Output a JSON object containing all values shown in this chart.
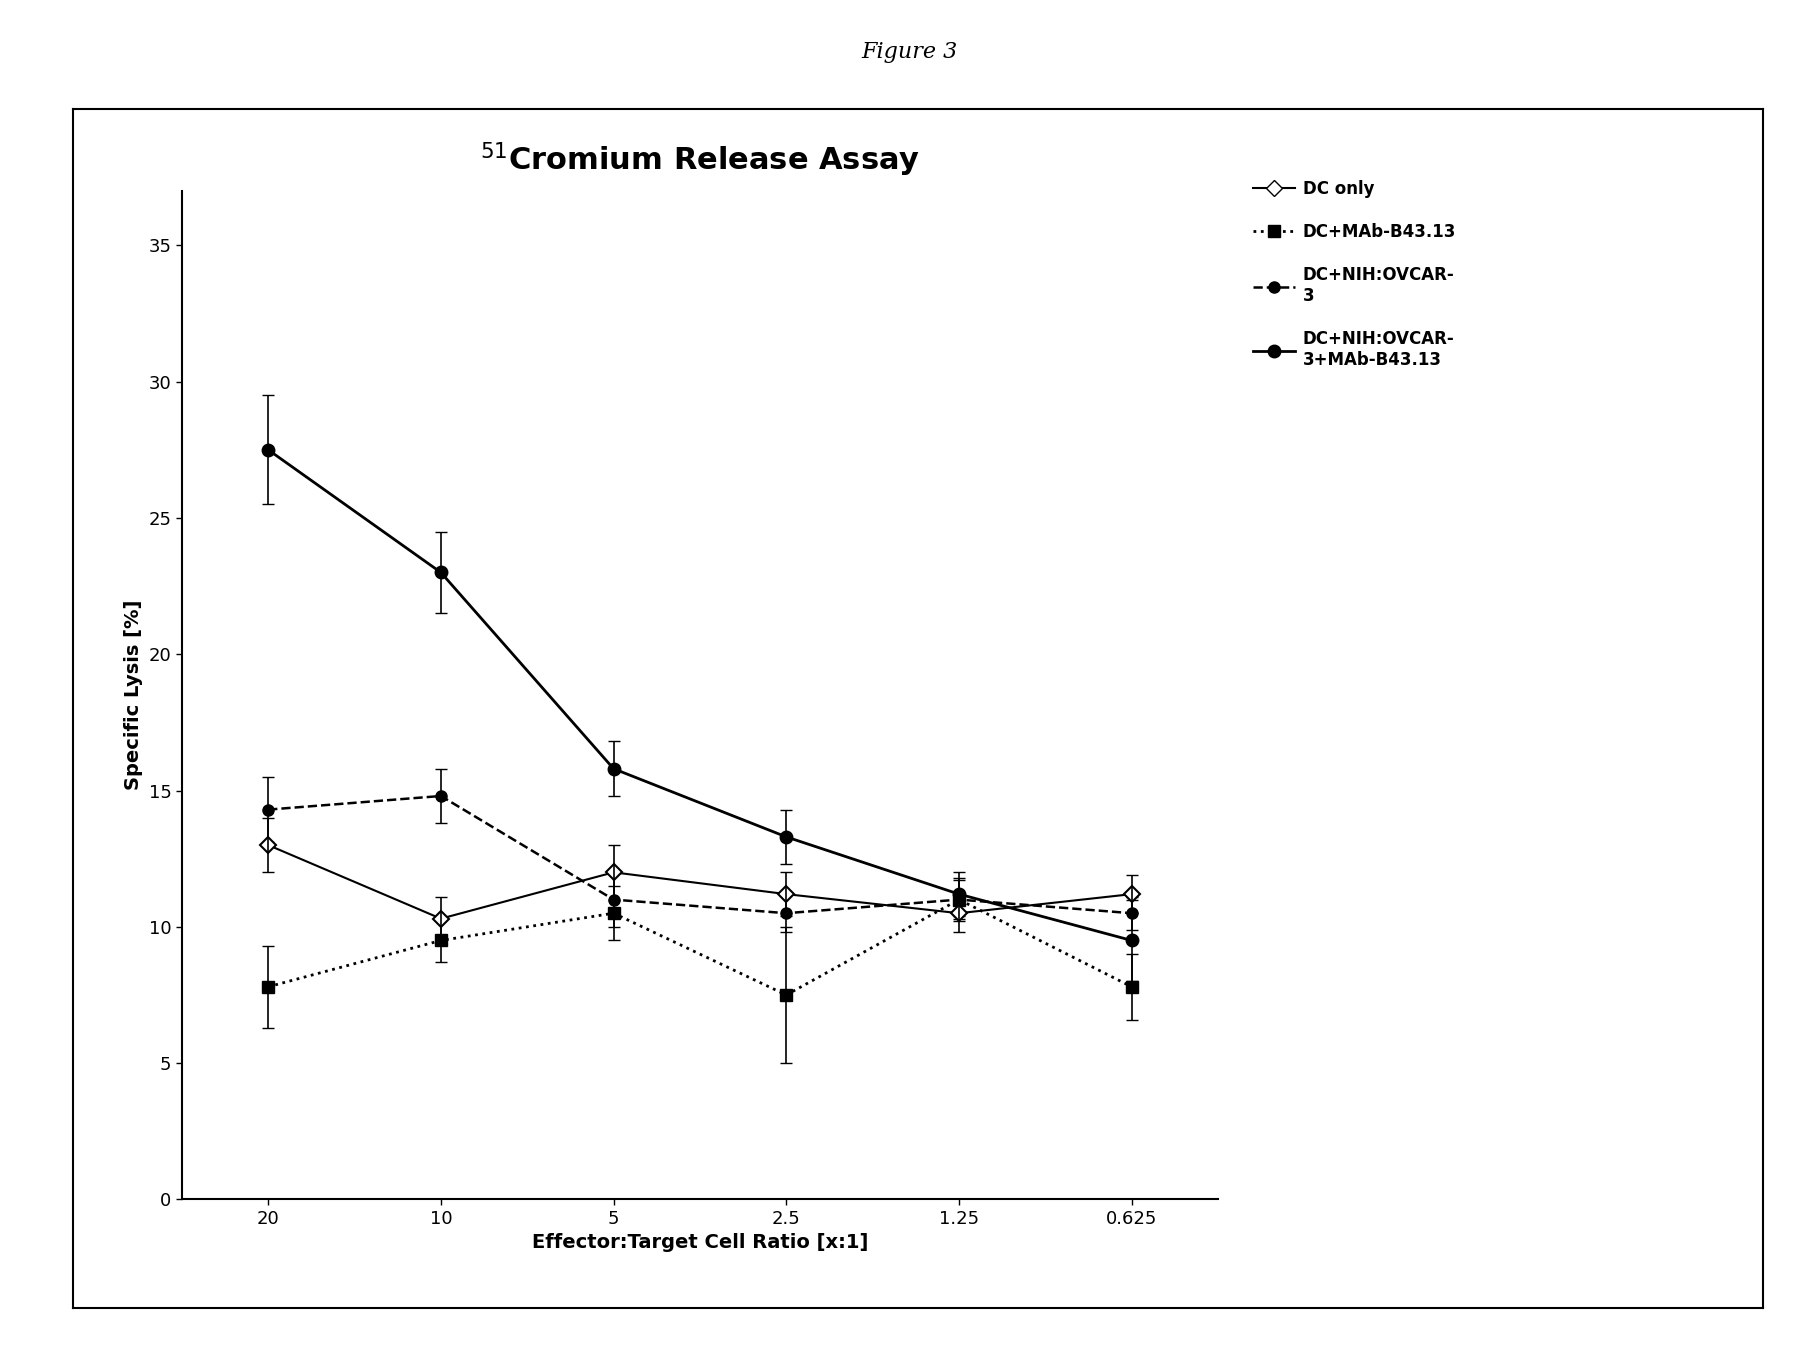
{
  "title": "$^{51}$Cromium Release Assay",
  "figure_title": "Figure 3",
  "xlabel": "Effector:Target Cell Ratio [x:1]",
  "ylabel": "Specific Lysis [%]",
  "x_values": [
    20,
    10,
    5,
    2.5,
    1.25,
    0.625
  ],
  "x_labels": [
    "20",
    "10",
    "5",
    "2.5",
    "1.25",
    "0.625"
  ],
  "ylim": [
    0,
    37
  ],
  "yticks": [
    0,
    5,
    10,
    15,
    20,
    25,
    30,
    35
  ],
  "series": {
    "DC_only": {
      "y": [
        13.0,
        10.3,
        12.0,
        11.2,
        10.5,
        11.2
      ],
      "yerr": [
        1.0,
        0.8,
        1.0,
        0.8,
        0.7,
        0.7
      ],
      "label": "DC only",
      "linestyle": "-",
      "marker": "D",
      "marker_fill": "white",
      "color": "#000000",
      "linewidth": 1.5,
      "markersize": 8
    },
    "DC_MAb": {
      "y": [
        7.8,
        9.5,
        10.5,
        7.5,
        11.0,
        7.8
      ],
      "yerr": [
        1.5,
        0.8,
        1.0,
        2.5,
        0.8,
        1.2
      ],
      "label": "DC+MAb-B43.13",
      "linestyle": ":",
      "marker": "s",
      "marker_fill": "black",
      "color": "#000000",
      "linewidth": 2.0,
      "markersize": 8
    },
    "DC_NIH_OVCAR": {
      "y": [
        14.3,
        14.8,
        11.0,
        10.5,
        11.0,
        10.5
      ],
      "yerr": [
        1.2,
        1.0,
        1.0,
        0.7,
        0.7,
        0.6
      ],
      "label": "DC+NIH:OVCAR-\n3",
      "linestyle": "--",
      "marker": "o",
      "marker_fill": "black",
      "color": "#000000",
      "linewidth": 1.8,
      "markersize": 8
    },
    "DC_NIH_OVCAR_MAb": {
      "y": [
        27.5,
        23.0,
        15.8,
        13.3,
        11.2,
        9.5
      ],
      "yerr": [
        2.0,
        1.5,
        1.0,
        1.0,
        0.8,
        1.5
      ],
      "label": "DC+NIH:OVCAR-\n3+MAb-B43.13",
      "linestyle": "-",
      "marker": "o",
      "marker_fill": "black",
      "color": "#000000",
      "linewidth": 2.0,
      "markersize": 9
    }
  },
  "background_color": "#ffffff",
  "plot_bg_color": "#ffffff",
  "legend_fontsize": 12,
  "title_fontsize": 22,
  "axis_label_fontsize": 14,
  "tick_fontsize": 13
}
